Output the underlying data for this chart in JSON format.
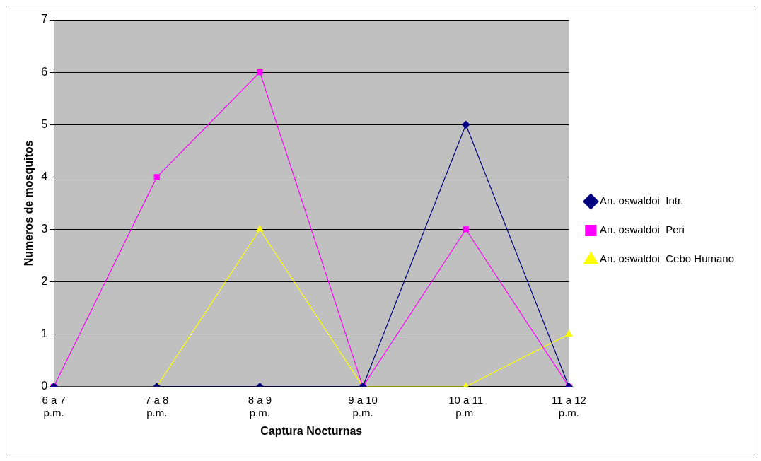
{
  "chart_data": {
    "type": "line",
    "xlabel": "Captura Nocturnas",
    "ylabel": "Numeros de mosquitos",
    "categories": [
      "6 a 7 p.m.",
      "7 a 8 p.m.",
      "8 a 9 p.m.",
      "9 a 10 p.m.",
      "10 a 11 p.m.",
      "11 a 12 p.m."
    ],
    "series": [
      {
        "name": "An. oswaldoi  Intr.",
        "color": "#000080",
        "marker": "diamond",
        "values": [
          0,
          0,
          0,
          0,
          5,
          0
        ]
      },
      {
        "name": "An. oswaldoi  Peri",
        "color": "#ff00ff",
        "marker": "square",
        "values": [
          0,
          4,
          6,
          0,
          3,
          0
        ]
      },
      {
        "name": "An. oswaldoi  Cebo Humano",
        "color": "#ffff00",
        "marker": "triangle",
        "values": [
          0,
          0,
          3,
          0,
          0,
          1
        ]
      }
    ],
    "ylim": [
      0,
      7
    ],
    "yticks": [
      0,
      1,
      2,
      3,
      4,
      5,
      6,
      7
    ],
    "grid": "y",
    "legend": "right",
    "line_style": "solid"
  }
}
